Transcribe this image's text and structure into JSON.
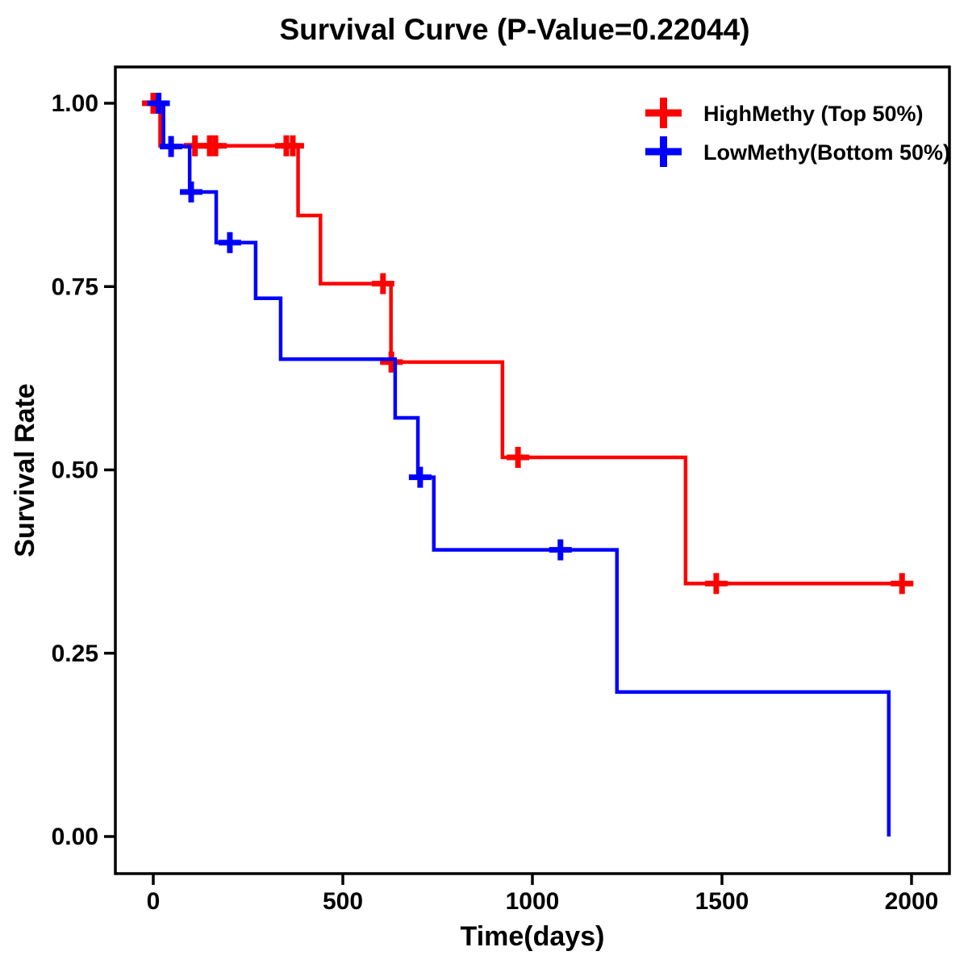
{
  "chart_data": {
    "type": "line",
    "subtype": "kaplan-meier-step",
    "title": "Survival Curve (P-Value=0.22044)",
    "p_value": "0.22044",
    "xlabel": "Time(days)",
    "ylabel": "Survival Rate",
    "xlim": [
      0,
      2000
    ],
    "ylim": [
      0.0,
      1.0
    ],
    "xticks": [
      0,
      500,
      1000,
      1500,
      2000
    ],
    "yticks": [
      "0.00",
      "0.25",
      "0.50",
      "0.75",
      "1.00"
    ],
    "ytick_values": [
      0.0,
      0.25,
      0.5,
      0.75,
      1.0
    ],
    "grid": false,
    "legend_position": "top-right",
    "series": [
      {
        "name": "HighMethy (Top 50%)",
        "color": "#ff0000",
        "start": {
          "t": 0,
          "s": 1.0
        },
        "end_t": 1975,
        "events": [
          {
            "t": 18,
            "s": 0.942
          },
          {
            "t": 382,
            "s": 0.847
          },
          {
            "t": 441,
            "s": 0.754
          },
          {
            "t": 627,
            "s": 0.647
          },
          {
            "t": 921,
            "s": 0.517
          },
          {
            "t": 1404,
            "s": 0.345
          }
        ],
        "censors": [
          {
            "t": 0,
            "s": 1.0
          },
          {
            "t": 110,
            "s": 0.942
          },
          {
            "t": 149,
            "s": 0.942
          },
          {
            "t": 164,
            "s": 0.942
          },
          {
            "t": 351,
            "s": 0.942
          },
          {
            "t": 368,
            "s": 0.942
          },
          {
            "t": 606,
            "s": 0.754
          },
          {
            "t": 628,
            "s": 0.647
          },
          {
            "t": 962,
            "s": 0.517
          },
          {
            "t": 1485,
            "s": 0.345
          },
          {
            "t": 1975,
            "s": 0.345
          }
        ]
      },
      {
        "name": "LowMethy(Bottom 50%)",
        "color": "#0000ff",
        "start": {
          "t": 0,
          "s": 1.0
        },
        "end_t": 1940,
        "events": [
          {
            "t": 27,
            "s": 0.941
          },
          {
            "t": 96,
            "s": 0.879
          },
          {
            "t": 166,
            "s": 0.81
          },
          {
            "t": 270,
            "s": 0.734
          },
          {
            "t": 336,
            "s": 0.651
          },
          {
            "t": 638,
            "s": 0.571
          },
          {
            "t": 698,
            "s": 0.49
          },
          {
            "t": 740,
            "s": 0.391
          },
          {
            "t": 1223,
            "s": 0.197
          },
          {
            "t": 1940,
            "s": 0.0
          }
        ],
        "censors": [
          {
            "t": 14,
            "s": 1.0
          },
          {
            "t": 47,
            "s": 0.941
          },
          {
            "t": 100,
            "s": 0.879
          },
          {
            "t": 202,
            "s": 0.81
          },
          {
            "t": 704,
            "s": 0.49
          },
          {
            "t": 1074,
            "s": 0.391
          }
        ]
      }
    ]
  },
  "legend": {
    "items": [
      {
        "label": "HighMethy (Top 50%)",
        "symbol": "plus",
        "color": "#ff0000"
      },
      {
        "label": "LowMethy(Bottom 50%)",
        "symbol": "plus",
        "color": "#0000ff"
      }
    ]
  },
  "colors": {
    "high_methy": "#ff0000",
    "low_methy": "#0000ff",
    "frame": "#000000",
    "background": "#ffffff"
  }
}
